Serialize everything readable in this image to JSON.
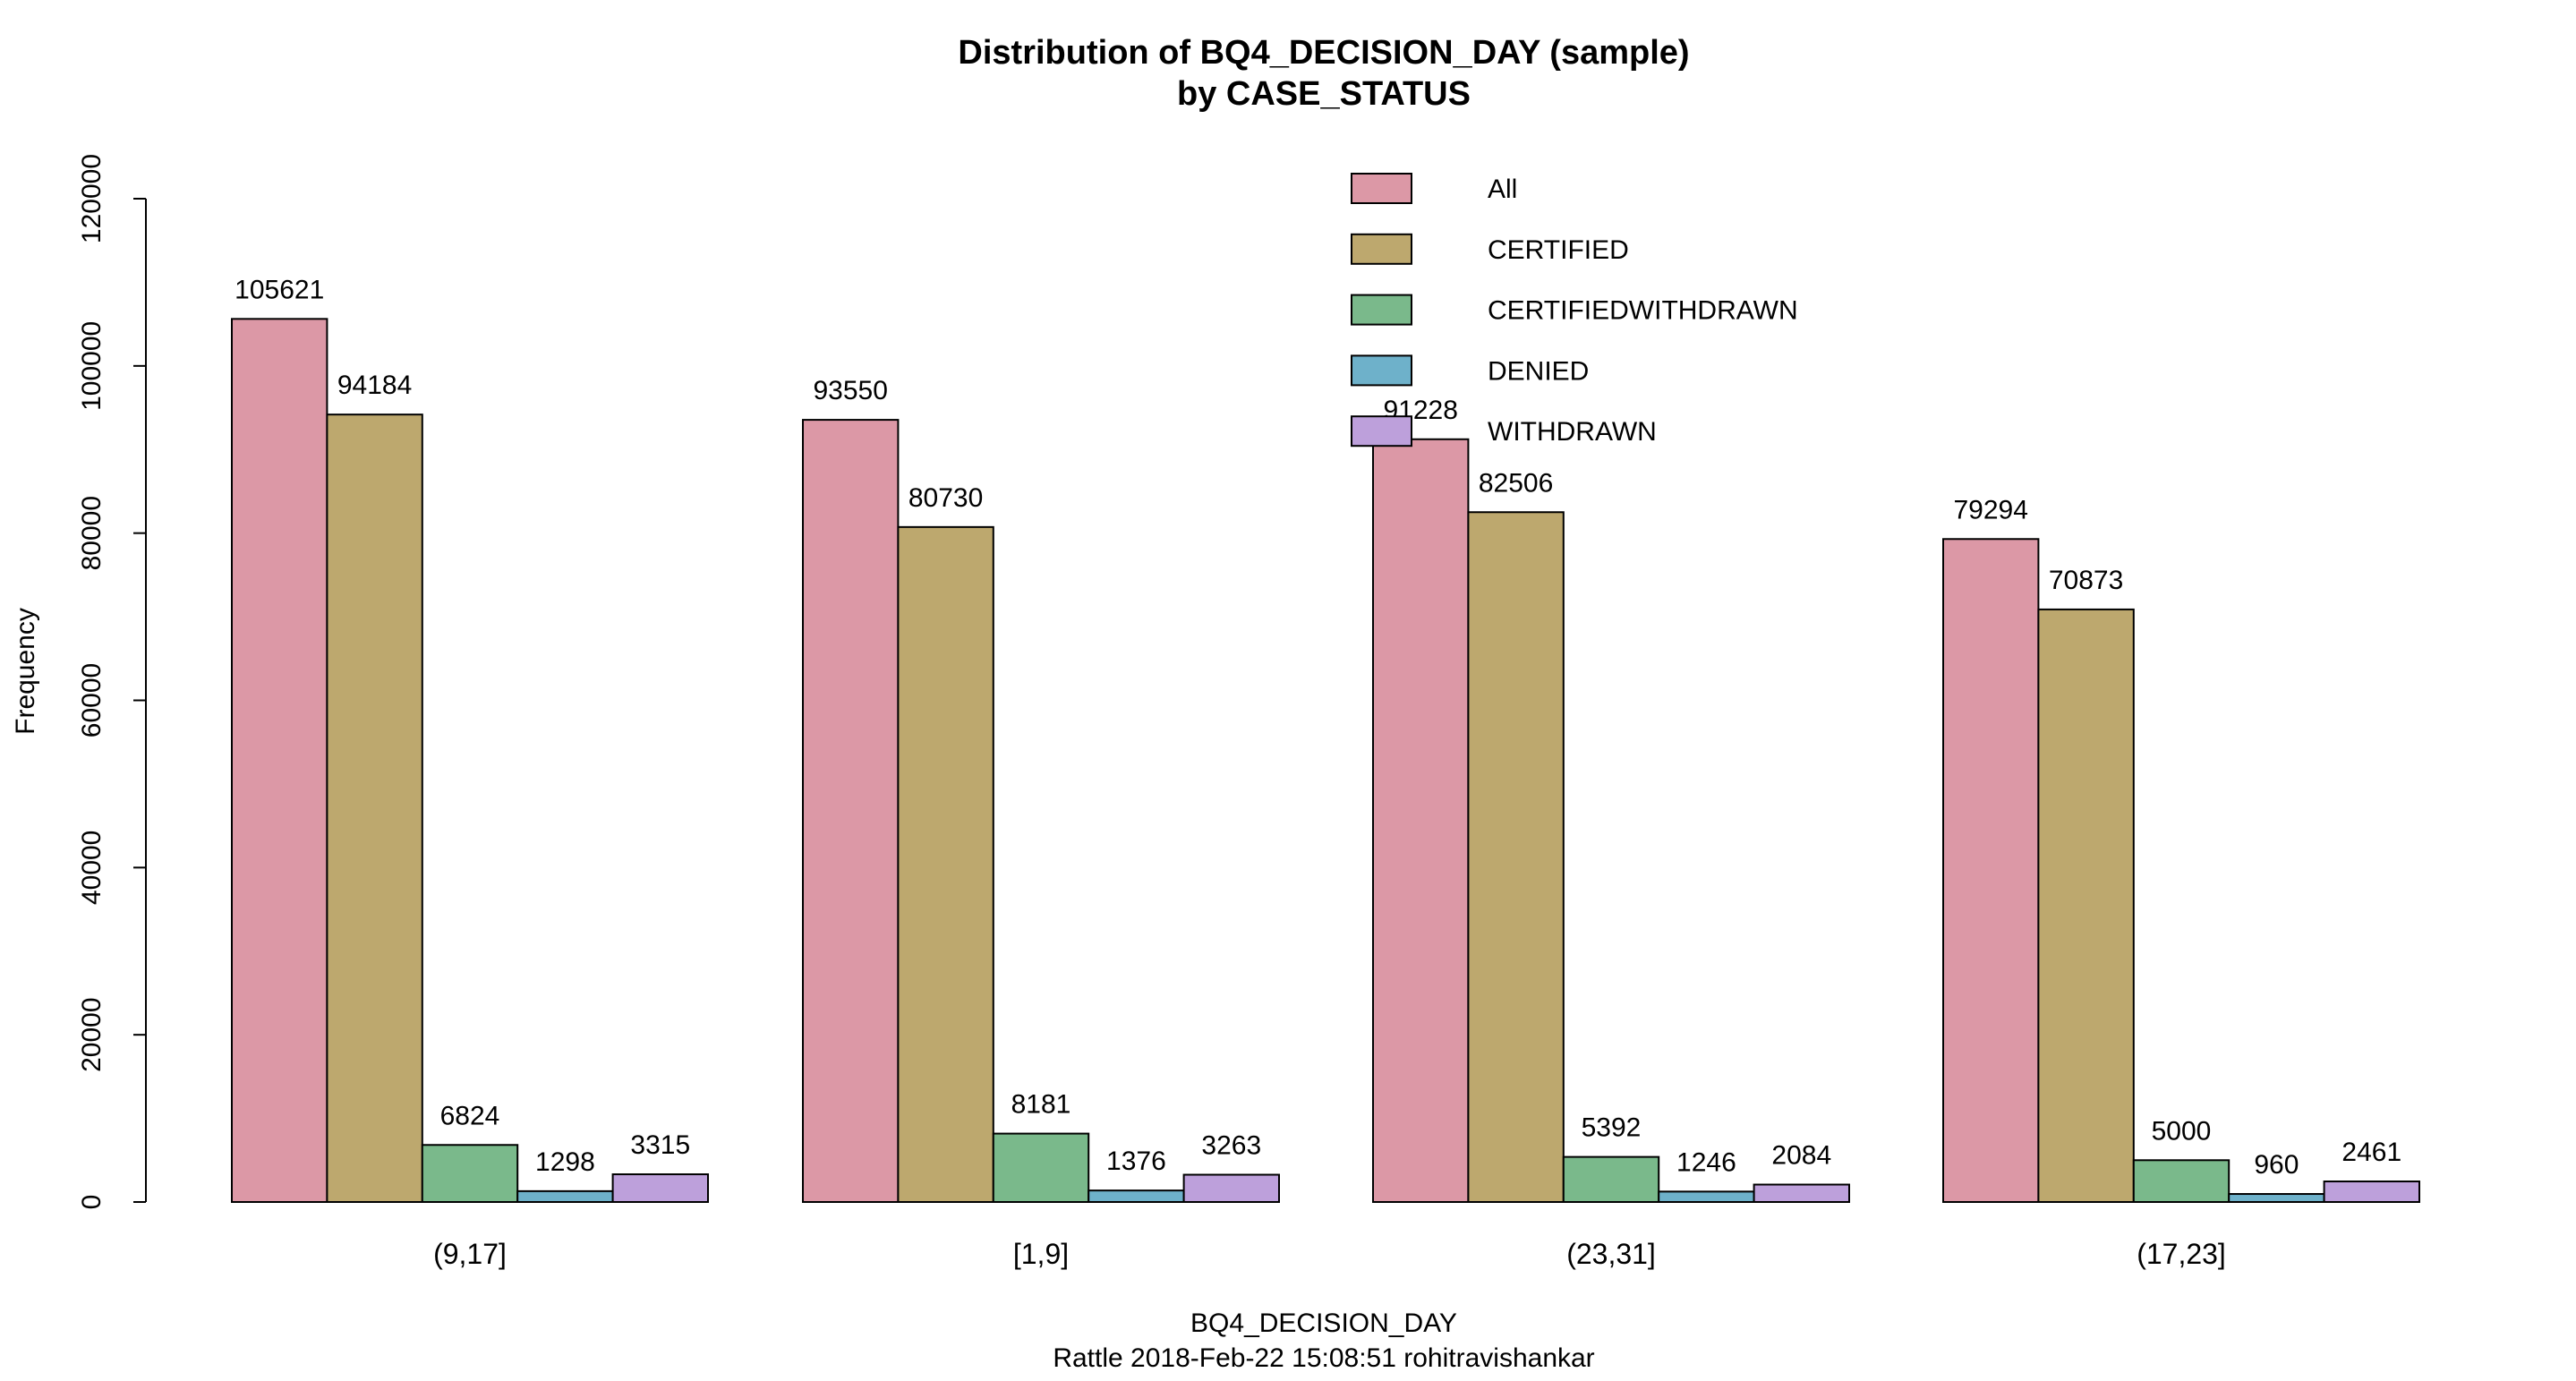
{
  "chart_data": {
    "type": "bar",
    "title": "Distribution of BQ4_DECISION_DAY (sample)",
    "subtitle": "by CASE_STATUS",
    "xlabel": "BQ4_DECISION_DAY",
    "ylabel": "Frequency",
    "footer": "Rattle 2018-Feb-22 15:08:51 rohitravishankar",
    "ylim": [
      0,
      120000
    ],
    "yticks": [
      "0",
      "20000",
      "40000",
      "60000",
      "80000",
      "100000",
      "120000"
    ],
    "ytick_values": [
      0,
      20000,
      40000,
      60000,
      80000,
      100000,
      120000
    ],
    "categories": [
      "(9,17]",
      "[1,9]",
      "(23,31]",
      "(17,23]"
    ],
    "series": [
      {
        "name": "All",
        "color": "#dc98a6",
        "values": [
          105621,
          93550,
          91228,
          79294
        ]
      },
      {
        "name": "CERTIFIED",
        "color": "#bda86e",
        "values": [
          94184,
          80730,
          82506,
          70873
        ]
      },
      {
        "name": "CERTIFIEDWITHDRAWN",
        "color": "#7ab98b",
        "values": [
          6824,
          8181,
          5392,
          5000
        ]
      },
      {
        "name": "DENIED",
        "color": "#6eb1ca",
        "values": [
          1298,
          1376,
          1246,
          960
        ]
      },
      {
        "name": "WITHDRAWN",
        "color": "#bda0db",
        "values": [
          3315,
          3263,
          2084,
          2461
        ]
      }
    ],
    "grid": false,
    "legend_position": "top-center"
  }
}
